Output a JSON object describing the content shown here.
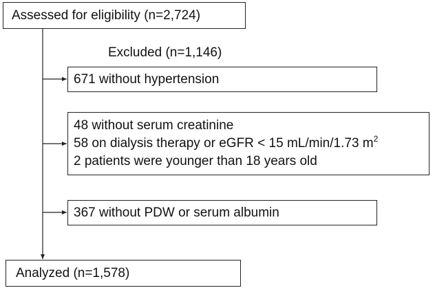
{
  "nodes": [
    {
      "label": "Assessed for eligibility (n=2,724)"
    },
    {
      "label": "Excluded (n=1,146)"
    },
    {
      "label": "671 without hypertension"
    },
    {
      "lines": [
        "48 without serum creatinine",
        "58 on dialysis therapy or eGFR < 15 mL/min/1.73 m",
        "2 patients were younger than 18 years old"
      ],
      "superscript": "2"
    },
    {
      "label": "367 without PDW or serum albumin"
    },
    {
      "label": "Analyzed (n=1,578)"
    }
  ]
}
